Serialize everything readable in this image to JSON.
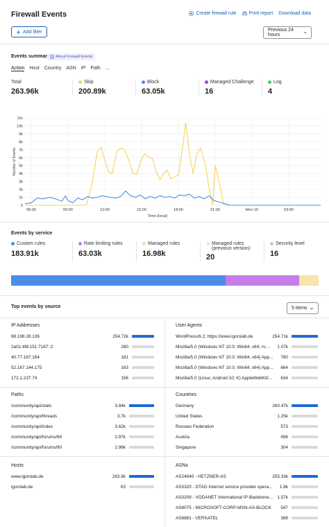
{
  "header": {
    "title": "Firewall Events",
    "links": [
      {
        "label": "Create firewall rule",
        "icon": "plus-circle-icon"
      },
      {
        "label": "Print report",
        "icon": "print-icon"
      },
      {
        "label": "Download data",
        "icon": "download-icon"
      }
    ],
    "add_filter": "Add filter",
    "time_range": "Previous 24 hours"
  },
  "summary": {
    "title": "Events summary",
    "badge": "About Firewall Events",
    "tabs": [
      "Action",
      "Host",
      "Country",
      "ASN",
      "IP",
      "Path",
      "..."
    ],
    "stats": [
      {
        "label": "Total",
        "value": "263.96k",
        "color": ""
      },
      {
        "label": "Skip",
        "value": "200.89k",
        "color": "#f2d45c"
      },
      {
        "label": "Block",
        "value": "63.05k",
        "color": "#4a90e2"
      },
      {
        "label": "Managed Challenge",
        "value": "16",
        "color": "#9b3fd6"
      },
      {
        "label": "Log",
        "value": "4",
        "color": "#3ccf6a"
      }
    ]
  },
  "chart_data": {
    "type": "line",
    "ylabel": "Number of Events",
    "xlabel": "Time (local)",
    "ylim": [
      0,
      11000
    ],
    "yticks": [
      "0",
      "1k",
      "2k",
      "3k",
      "4k",
      "5k",
      "6k",
      "7k",
      "8k",
      "9k",
      "10k",
      "11k"
    ],
    "xticks": [
      "06:00",
      "09:00",
      "12:00",
      "15:00",
      "18:00",
      "21:00",
      "Mon 15",
      "03:00"
    ],
    "x_range_hours": [
      5.5,
      29.6
    ],
    "series": [
      {
        "name": "Skip",
        "color": "#f2d45c",
        "points": [
          [
            5.5,
            0
          ],
          [
            10.5,
            0
          ],
          [
            11.0,
            3000
          ],
          [
            11.4,
            6800
          ],
          [
            11.7,
            7300
          ],
          [
            12.0,
            5800
          ],
          [
            12.3,
            4200
          ],
          [
            12.6,
            4000
          ],
          [
            13.0,
            6800
          ],
          [
            13.3,
            7200
          ],
          [
            13.6,
            7000
          ],
          [
            14.0,
            5500
          ],
          [
            14.3,
            4000
          ],
          [
            14.6,
            3900
          ],
          [
            15.0,
            5800
          ],
          [
            15.3,
            6500
          ],
          [
            15.6,
            6000
          ],
          [
            15.9,
            5900
          ],
          [
            16.2,
            4200
          ],
          [
            16.5,
            3200
          ],
          [
            16.8,
            4000
          ],
          [
            17.1,
            4400
          ],
          [
            17.4,
            3300
          ],
          [
            17.7,
            3600
          ],
          [
            18.0,
            3800
          ],
          [
            18.3,
            6800
          ],
          [
            18.6,
            10400
          ],
          [
            18.9,
            6500
          ],
          [
            19.2,
            4000
          ],
          [
            19.5,
            6400
          ],
          [
            19.8,
            7200
          ],
          [
            20.2,
            5200
          ],
          [
            20.5,
            2200
          ],
          [
            20.8,
            0
          ],
          [
            21.0,
            5000
          ],
          [
            21.3,
            3100
          ],
          [
            21.7,
            0
          ],
          [
            29.6,
            0
          ]
        ]
      },
      {
        "name": "Block",
        "color": "#4a90e2",
        "points": [
          [
            5.5,
            200
          ],
          [
            6.0,
            300
          ],
          [
            6.5,
            900
          ],
          [
            7.0,
            800
          ],
          [
            7.5,
            1000
          ],
          [
            8.0,
            800
          ],
          [
            8.5,
            500
          ],
          [
            8.8,
            1200
          ],
          [
            9.0,
            600
          ],
          [
            9.4,
            300
          ],
          [
            9.8,
            900
          ],
          [
            10.2,
            700
          ],
          [
            10.6,
            1100
          ],
          [
            11.0,
            900
          ],
          [
            11.4,
            1000
          ],
          [
            11.8,
            1200
          ],
          [
            12.1,
            1100
          ],
          [
            12.5,
            1000
          ],
          [
            12.9,
            900
          ],
          [
            13.3,
            1100
          ],
          [
            13.7,
            1800
          ],
          [
            14.1,
            1200
          ],
          [
            14.5,
            1000
          ],
          [
            14.9,
            1300
          ],
          [
            15.3,
            800
          ],
          [
            15.7,
            1100
          ],
          [
            16.1,
            900
          ],
          [
            16.5,
            1200
          ],
          [
            16.9,
            1000
          ],
          [
            17.3,
            1100
          ],
          [
            17.7,
            900
          ],
          [
            18.1,
            1300
          ],
          [
            18.5,
            1200
          ],
          [
            18.9,
            1400
          ],
          [
            19.3,
            900
          ],
          [
            19.7,
            1100
          ],
          [
            20.1,
            800
          ],
          [
            20.5,
            1200
          ],
          [
            20.9,
            600
          ],
          [
            21.3,
            400
          ],
          [
            21.8,
            200
          ],
          [
            22.2,
            0
          ],
          [
            29.6,
            0
          ]
        ]
      }
    ]
  },
  "services": {
    "title": "Events by service",
    "stats": [
      {
        "label": "Custom rules",
        "value": "183.91k",
        "color": "#4a90e2"
      },
      {
        "label": "Rate limiting rules",
        "value": "63.03k",
        "color": "#c77de9"
      },
      {
        "label": "Managed rules",
        "value": "16.98k",
        "color": "#f5e2a8"
      },
      {
        "label": "Managed rules",
        "label2": "(previous version)",
        "value": "20",
        "color": "#f7e9b9"
      },
      {
        "label": "Security level",
        "value": "16",
        "color": "#a8dcd0"
      }
    ],
    "bar": [
      {
        "share": 0.697,
        "color": "#4a8ee8"
      },
      {
        "share": 0.239,
        "color": "#c77de9"
      },
      {
        "share": 0.064,
        "color": "#f7e4ae"
      }
    ]
  },
  "top": {
    "title": "Top events by source",
    "items_select": "5 items",
    "boxes": [
      {
        "title": "IP Addresses",
        "rows": [
          {
            "label": "88.198.28.136",
            "value": "254.72k",
            "share": 1.0
          },
          {
            "label": "2a01:4f8:151:7167::2",
            "value": "280",
            "share": 0.01
          },
          {
            "label": "40.77.167.164",
            "value": "181",
            "share": 0.01
          },
          {
            "label": "52.167.144.175",
            "value": "163",
            "share": 0.01
          },
          {
            "label": "172.1.237.74",
            "value": "156",
            "share": 0.01
          }
        ]
      },
      {
        "title": "User Agents",
        "rows": [
          {
            "label": "WordPress/6.2; https://www.igorslab.de",
            "value": "254.71k",
            "share": 1.0
          },
          {
            "label": "Mozilla/5.0 (Windows NT 10.0; Win64; x64; rv:...",
            "value": "1.07k",
            "share": 0.01
          },
          {
            "label": "Mozilla/5.0 (Windows NT 10.0; Win64; x64) App...",
            "value": "780",
            "share": 0.01
          },
          {
            "label": "Mozilla/5.0 (Windows NT 10.0; Win64; x64) App...",
            "value": "664",
            "share": 0.01
          },
          {
            "label": "Mozilla/5.0 (Linux; Android 10; K) AppleWebKit/...",
            "value": "634",
            "share": 0.01
          }
        ]
      },
      {
        "title": "Paths",
        "rows": [
          {
            "label": "/community/api/stats",
            "value": "3.84k",
            "share": 1.0
          },
          {
            "label": "/community/api/threads",
            "value": "3.7k",
            "share": 0.96
          },
          {
            "label": "/community/api/index",
            "value": "3.62k",
            "share": 0.94
          },
          {
            "label": "/community/api/forums/84",
            "value": "2.97k",
            "share": 0.77
          },
          {
            "label": "/community/api/forums/80",
            "value": "2.96k",
            "share": 0.77
          }
        ]
      },
      {
        "title": "Countries",
        "rows": [
          {
            "label": "Germany",
            "value": "260.47k",
            "share": 1.0
          },
          {
            "label": "United States",
            "value": "1.25k",
            "share": 0.01
          },
          {
            "label": "Russian Federation",
            "value": "573",
            "share": 0.01
          },
          {
            "label": "Austria",
            "value": "496",
            "share": 0.01
          },
          {
            "label": "Singapore",
            "value": "304",
            "share": 0.01
          }
        ]
      },
      {
        "title": "Hosts",
        "rows": [
          {
            "label": "www.igorslab.de",
            "value": "263.9k",
            "share": 1.0
          },
          {
            "label": "igorslab.de",
            "value": "63",
            "share": 0.01
          }
        ]
      },
      {
        "title": "ASNs",
        "rows": [
          {
            "label": "AS24940 - HETZNER-AS",
            "value": "255.33k",
            "share": 1.0
          },
          {
            "label": "AS3320 - DTAG Internet service provider opera...",
            "value": "1.8k",
            "share": 0.01
          },
          {
            "label": "AS3209 - VODANET International IP-Backbone...",
            "value": "1.57k",
            "share": 0.01
          },
          {
            "label": "AS8075 - MICROSOFT-CORP-MSN-AS-BLOCK",
            "value": "547",
            "share": 0.01
          },
          {
            "label": "AS8881 - VERSATEL",
            "value": "388",
            "share": 0.01
          }
        ]
      }
    ]
  }
}
